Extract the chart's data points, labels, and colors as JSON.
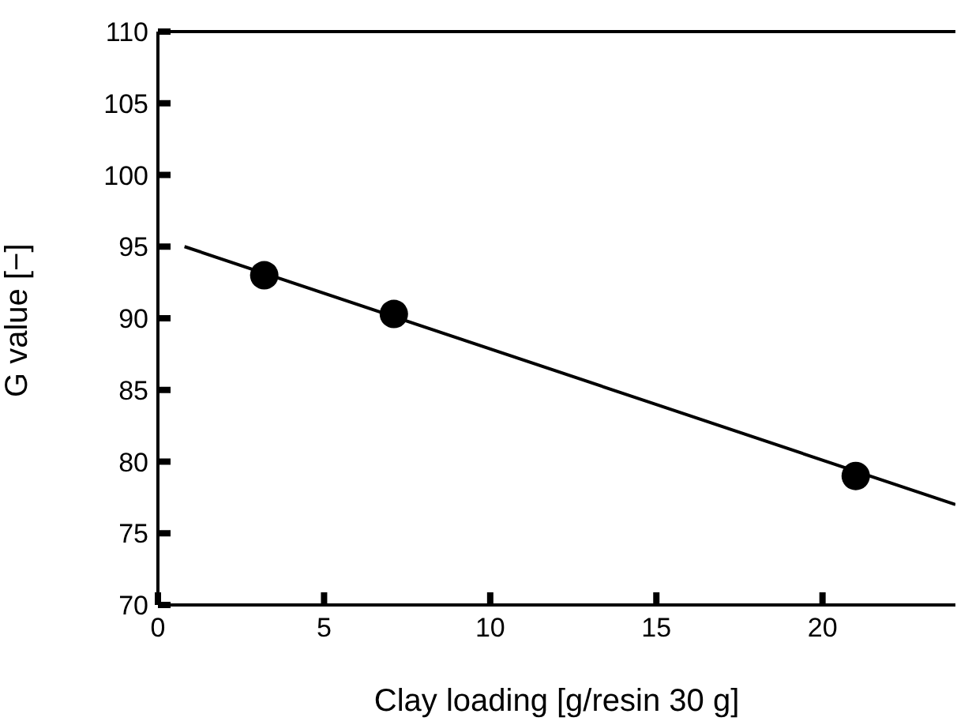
{
  "chart_data": {
    "type": "scatter",
    "xlabel": "Clay loading [g/resin 30 g]",
    "ylabel": "G value [−]",
    "xlim": [
      0,
      24
    ],
    "xticks": [
      0,
      5,
      10,
      15,
      20
    ],
    "ylim": [
      70,
      110
    ],
    "yticks": [
      70,
      75,
      80,
      85,
      90,
      95,
      100,
      105,
      110
    ],
    "grid": false,
    "legend": false,
    "marker": "circle",
    "series": [
      {
        "color": "#000000",
        "x": [
          3.2,
          7.1,
          21
        ],
        "values": [
          93,
          90.3,
          79
        ]
      },
      {
        "type": "line",
        "color": "#000000",
        "x": [
          0.8,
          24
        ],
        "values": [
          95.0,
          77.0
        ],
        "marker": "none",
        "line_style": "solid"
      }
    ]
  }
}
